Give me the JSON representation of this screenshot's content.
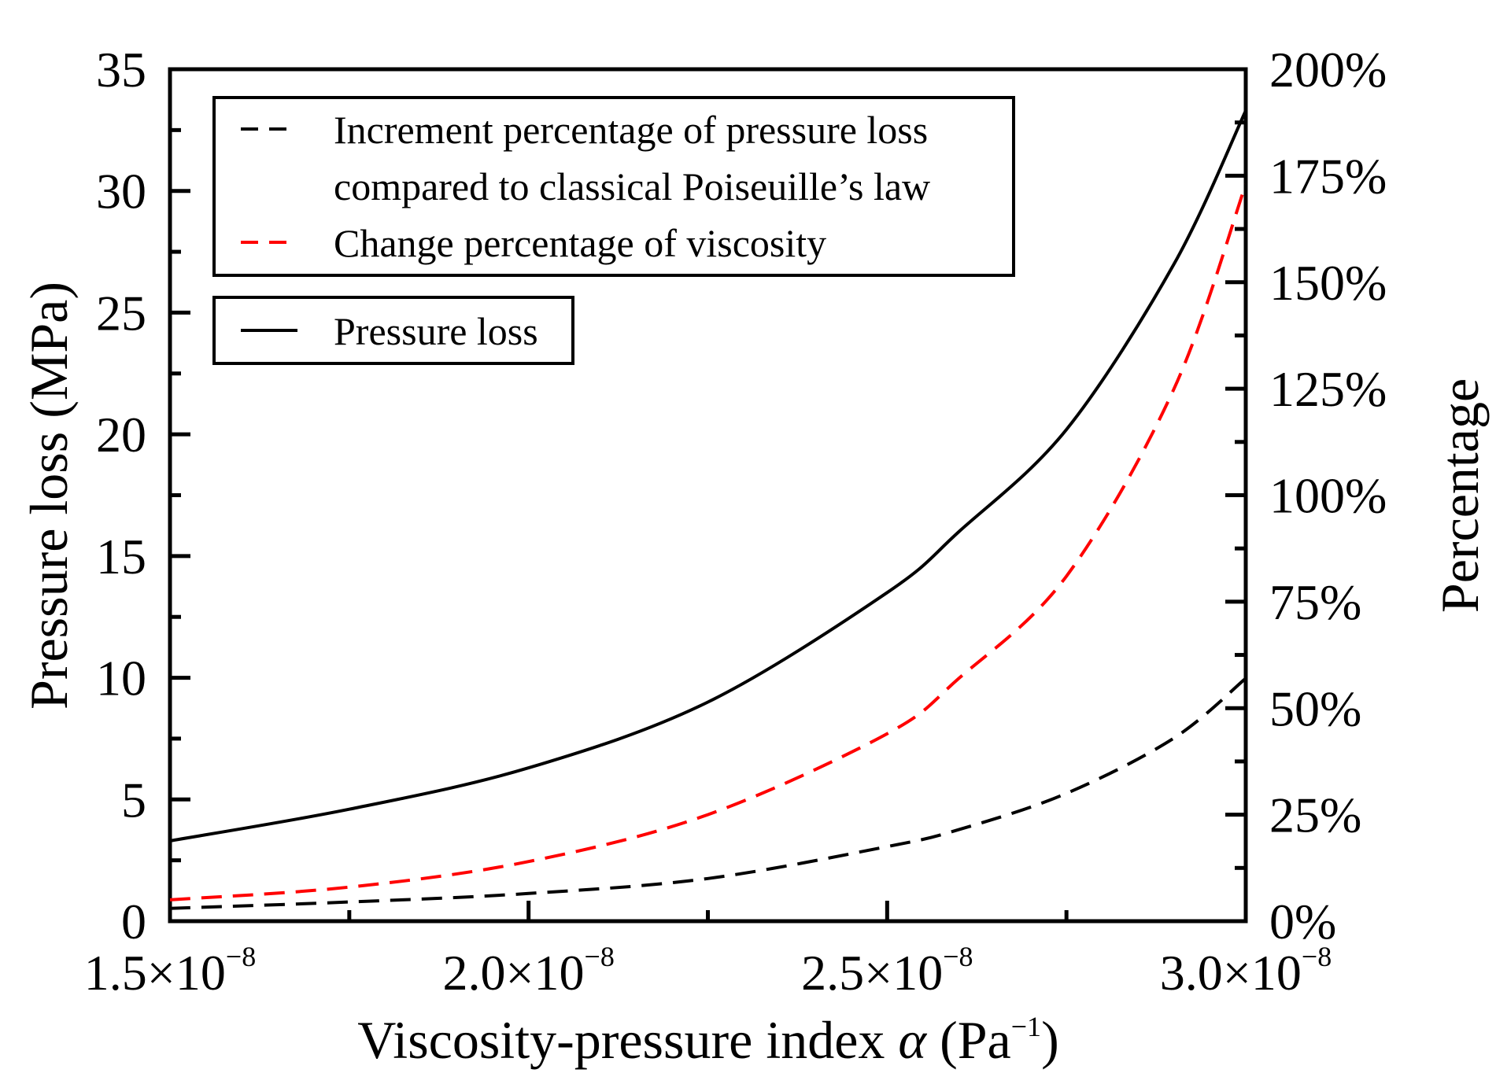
{
  "chart_data": {
    "type": "line",
    "title": "",
    "xlabel": {
      "main": "Viscosity-pressure index ",
      "symbol": "α",
      "unit_open": " (Pa",
      "unit_exp": "−1",
      "unit_close": ")"
    },
    "ylabel_left": "Pressure loss (MPa)",
    "ylabel_right": "Percentage",
    "xlim": [
      1.5e-08,
      3e-08
    ],
    "ylim_left": [
      0,
      35
    ],
    "ylim_right": [
      0,
      200
    ],
    "x_ticks": [
      {
        "value": 1.5e-08,
        "mantissa": "1.5×10",
        "exp": "−8"
      },
      {
        "value": 2e-08,
        "mantissa": "2.0×10",
        "exp": "−8"
      },
      {
        "value": 2.5e-08,
        "mantissa": "2.5×10",
        "exp": "−8"
      },
      {
        "value": 3e-08,
        "mantissa": "3.0×10",
        "exp": "−8"
      }
    ],
    "x_minor_ticks": [
      1.75e-08,
      2.25e-08,
      2.75e-08
    ],
    "y_left_ticks": [
      {
        "value": 0,
        "label": "0"
      },
      {
        "value": 5,
        "label": "5"
      },
      {
        "value": 10,
        "label": "10"
      },
      {
        "value": 15,
        "label": "15"
      },
      {
        "value": 20,
        "label": "20"
      },
      {
        "value": 25,
        "label": "25"
      },
      {
        "value": 30,
        "label": "30"
      },
      {
        "value": 35,
        "label": "35"
      }
    ],
    "y_left_minor_ticks": [
      2.5,
      7.5,
      12.5,
      17.5,
      22.5,
      27.5,
      32.5
    ],
    "y_right_ticks": [
      {
        "value": 0,
        "label": "0%"
      },
      {
        "value": 25,
        "label": "25%"
      },
      {
        "value": 50,
        "label": "50%"
      },
      {
        "value": 75,
        "label": "75%"
      },
      {
        "value": 100,
        "label": "100%"
      },
      {
        "value": 125,
        "label": "125%"
      },
      {
        "value": 150,
        "label": "150%"
      },
      {
        "value": 175,
        "label": "175%"
      },
      {
        "value": 200,
        "label": "200%"
      }
    ],
    "y_right_minor_ticks": [
      12.5,
      37.5,
      62.5,
      87.5,
      112.5,
      137.5,
      162.5,
      187.5
    ],
    "x": [
      1.5e-08,
      1.75e-08,
      2e-08,
      2.25e-08,
      2.5e-08,
      2.6e-08,
      2.75e-08,
      2.9e-08,
      3e-08
    ],
    "series": [
      {
        "name": "Pressure loss",
        "axis": "left",
        "color": "#000000",
        "dash": "solid",
        "values": [
          3.3,
          4.6,
          6.3,
          9.0,
          13.5,
          16.0,
          20.2,
          27.0,
          33.3
        ]
      },
      {
        "name": "Increment percentage of pressure loss compared to classical Poiseuille’s law",
        "axis": "right",
        "color": "#000000",
        "dash": "dashed",
        "values": [
          3.0,
          4.5,
          6.5,
          10.0,
          17.5,
          21.5,
          30.0,
          43.0,
          57.0
        ]
      },
      {
        "name": "Change percentage of viscosity",
        "axis": "right",
        "color": "#ff0000",
        "dash": "dashed",
        "values": [
          5.0,
          8.0,
          14.0,
          25.0,
          44.0,
          57.0,
          81.0,
          125.0,
          173.0
        ]
      }
    ],
    "legend": {
      "group1": [
        {
          "lines": [
            "Increment percentage of pressure loss",
            "compared to classical Poiseuille’s law"
          ],
          "color": "#000000",
          "dash": "dashed"
        },
        {
          "lines": [
            "Change percentage of viscosity"
          ],
          "color": "#ff0000",
          "dash": "dashed"
        }
      ],
      "group2": [
        {
          "lines": [
            "Pressure loss"
          ],
          "color": "#000000",
          "dash": "solid"
        }
      ],
      "placement": "top-left"
    }
  }
}
